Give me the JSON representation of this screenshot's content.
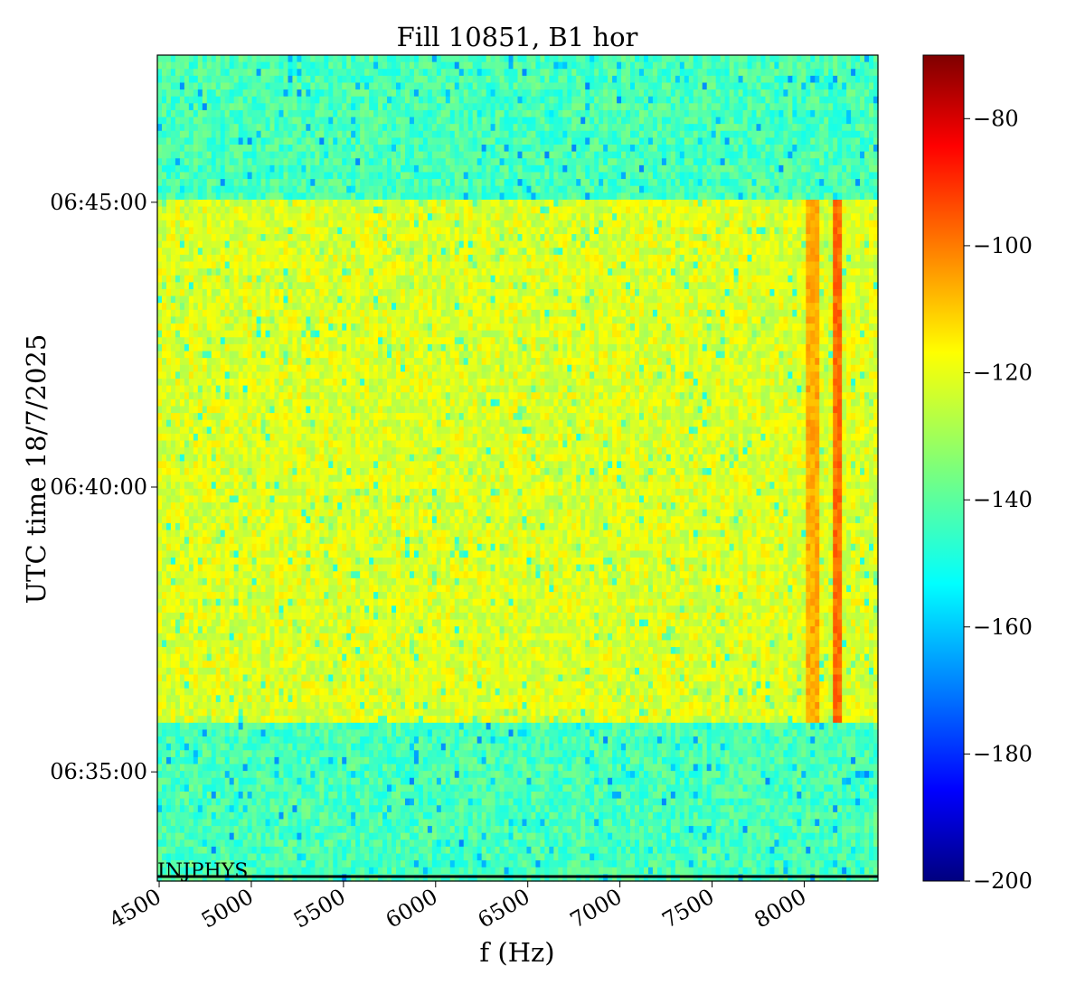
{
  "chart_data": {
    "type": "heatmap",
    "title": "Fill 10851, B1 hor",
    "xlabel": "f (Hz)",
    "ylabel": "UTC time 18/7/2025",
    "xlim": [
      4490,
      8400
    ],
    "ylim": [
      "06:33:05",
      "06:47:35"
    ],
    "x_ticks": [
      4500,
      5000,
      5500,
      6000,
      6500,
      7000,
      7500,
      8000
    ],
    "y_ticks": [
      "06:35:00",
      "06:40:00",
      "06:45:00"
    ],
    "colorbar": {
      "colormap": "jet",
      "range": [
        -200,
        -70
      ],
      "ticks": [
        -80,
        -100,
        -120,
        -140,
        -160,
        -180,
        -200
      ]
    },
    "regions": [
      {
        "from": "06:33:05",
        "to": "06:35:55",
        "level": -142
      },
      {
        "from": "06:35:55",
        "to": "06:45:05",
        "level": -123
      },
      {
        "from": "06:45:05",
        "to": "06:47:35",
        "level": -142
      }
    ],
    "lines": [
      {
        "f_from": 8020,
        "f_to": 8080,
        "level": -108
      },
      {
        "f_from": 8160,
        "f_to": 8200,
        "level": -100
      }
    ],
    "annotation": "INJPHYS"
  }
}
